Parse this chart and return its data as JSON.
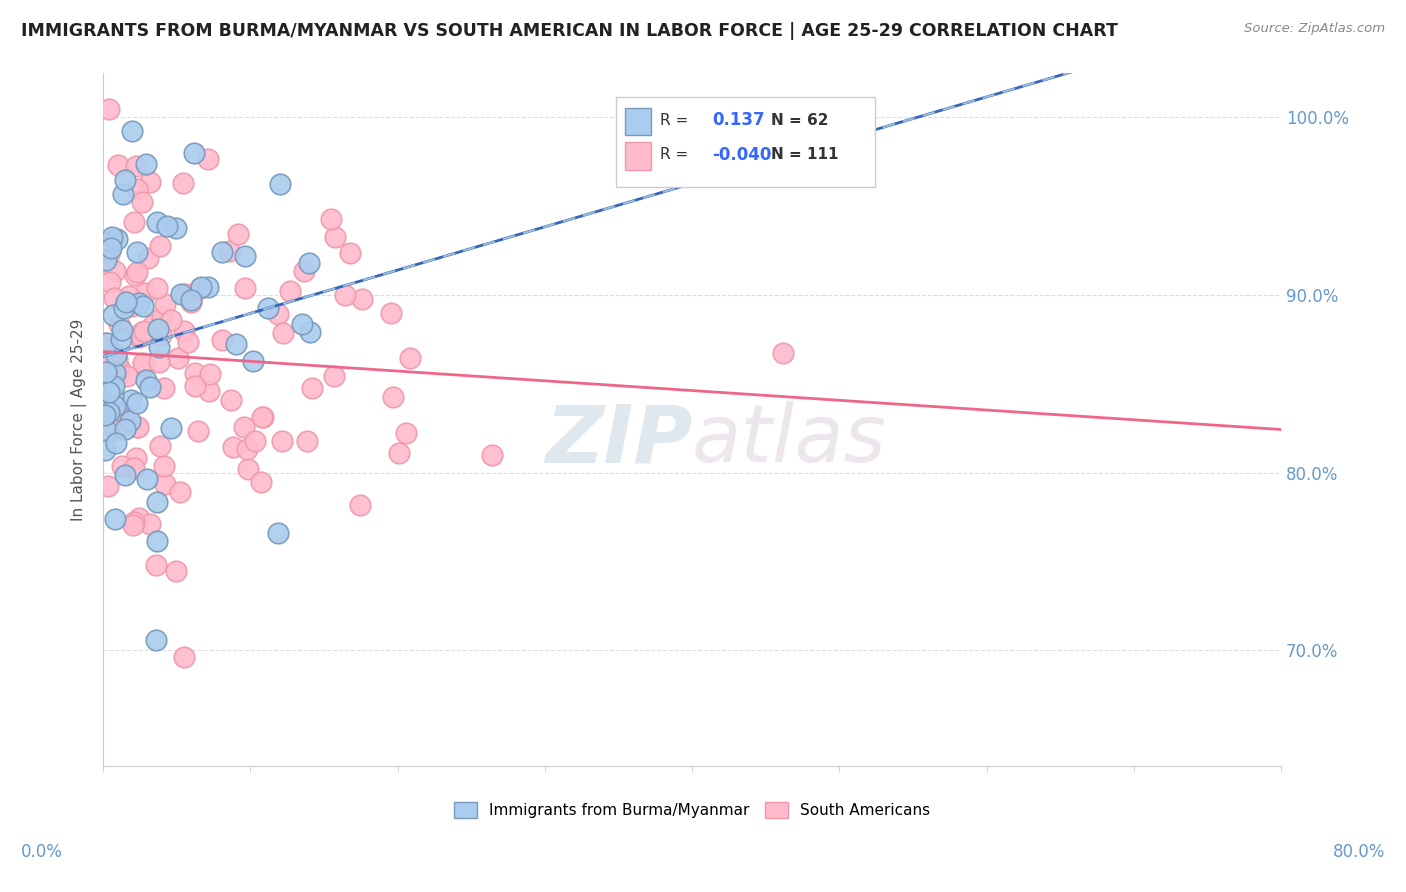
{
  "title": "IMMIGRANTS FROM BURMA/MYANMAR VS SOUTH AMERICAN IN LABOR FORCE | AGE 25-29 CORRELATION CHART",
  "source": "Source: ZipAtlas.com",
  "ylabel": "In Labor Force | Age 25-29",
  "y_tick_labels": [
    "70.0%",
    "80.0%",
    "90.0%",
    "100.0%"
  ],
  "y_tick_values": [
    0.7,
    0.8,
    0.9,
    1.0
  ],
  "xlim": [
    0.0,
    0.8
  ],
  "ylim": [
    0.635,
    1.025
  ],
  "r_burma": 0.137,
  "n_burma": 62,
  "r_south": -0.04,
  "n_south": 111,
  "burma_color": "#aaccee",
  "south_color": "#ffbbcc",
  "burma_edge": "#7799bb",
  "south_edge": "#ee99aa",
  "trendline_burma_color": "#3366bb",
  "trendline_south_color": "#ee6688",
  "trendline_burma_dashed_color": "#99bbdd",
  "watermark_zip": "ZIP",
  "watermark_atlas": "atlas",
  "watermark_color": "#ccddeebb",
  "background_color": "#ffffff",
  "grid_color": "#dddddd",
  "title_color": "#222222",
  "source_color": "#888888",
  "axis_label_color": "#6699cc",
  "ylabel_color": "#555555"
}
